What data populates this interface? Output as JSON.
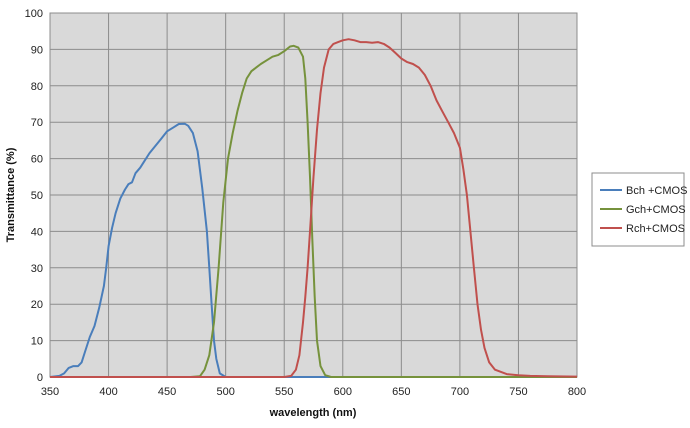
{
  "chart_data": {
    "type": "line",
    "title": "",
    "xlabel": "wavelength (nm)",
    "ylabel": "Transmittance (%)",
    "xlim": [
      350,
      800
    ],
    "ylim": [
      0,
      100
    ],
    "xticks": [
      350,
      400,
      450,
      500,
      550,
      600,
      650,
      700,
      750,
      800
    ],
    "yticks": [
      0,
      10,
      20,
      30,
      40,
      50,
      60,
      70,
      80,
      90,
      100
    ],
    "grid": true,
    "legend_position": "right",
    "colors": {
      "plot_background": "#d9d9d9",
      "grid": "#8c8c8c"
    },
    "series": [
      {
        "name": "Bch +CMOS",
        "color": "#4a7ebb",
        "points": [
          [
            350,
            0
          ],
          [
            358,
            0.3
          ],
          [
            362,
            1
          ],
          [
            366,
            2.5
          ],
          [
            370,
            3
          ],
          [
            374,
            3
          ],
          [
            377,
            4
          ],
          [
            380,
            7
          ],
          [
            384,
            11
          ],
          [
            388,
            14
          ],
          [
            392,
            19
          ],
          [
            396,
            25
          ],
          [
            398,
            30
          ],
          [
            400,
            36
          ],
          [
            403,
            41
          ],
          [
            406,
            45
          ],
          [
            410,
            49
          ],
          [
            414,
            51.5
          ],
          [
            417,
            53
          ],
          [
            420,
            53.5
          ],
          [
            423,
            56
          ],
          [
            427,
            57.5
          ],
          [
            430,
            59
          ],
          [
            435,
            61.5
          ],
          [
            440,
            63.5
          ],
          [
            445,
            65.5
          ],
          [
            450,
            67.5
          ],
          [
            455,
            68.5
          ],
          [
            460,
            69.5
          ],
          [
            465,
            69.6
          ],
          [
            468,
            69
          ],
          [
            472,
            67
          ],
          [
            476,
            62
          ],
          [
            480,
            52
          ],
          [
            484,
            40
          ],
          [
            486,
            30
          ],
          [
            488,
            20
          ],
          [
            490,
            10
          ],
          [
            492,
            5
          ],
          [
            495,
            1
          ],
          [
            500,
            0
          ],
          [
            550,
            0
          ],
          [
            600,
            0
          ],
          [
            650,
            0
          ],
          [
            700,
            0
          ],
          [
            800,
            0
          ]
        ]
      },
      {
        "name": "Gch+CMOS",
        "color": "#76923c",
        "points": [
          [
            350,
            0
          ],
          [
            470,
            0
          ],
          [
            478,
            0.2
          ],
          [
            482,
            2
          ],
          [
            486,
            6
          ],
          [
            490,
            15
          ],
          [
            494,
            30
          ],
          [
            498,
            48
          ],
          [
            502,
            60
          ],
          [
            506,
            67
          ],
          [
            510,
            73
          ],
          [
            514,
            78
          ],
          [
            518,
            82
          ],
          [
            522,
            84
          ],
          [
            526,
            85
          ],
          [
            530,
            86
          ],
          [
            535,
            87
          ],
          [
            540,
            88
          ],
          [
            545,
            88.5
          ],
          [
            550,
            89.5
          ],
          [
            555,
            90.8
          ],
          [
            558,
            91
          ],
          [
            562,
            90.5
          ],
          [
            566,
            88
          ],
          [
            568,
            82
          ],
          [
            570,
            70
          ],
          [
            572,
            55
          ],
          [
            574,
            38
          ],
          [
            576,
            22
          ],
          [
            578,
            10
          ],
          [
            581,
            3
          ],
          [
            585,
            0.5
          ],
          [
            590,
            0
          ],
          [
            650,
            0
          ],
          [
            700,
            0
          ],
          [
            800,
            0
          ]
        ]
      },
      {
        "name": "Rch+CMOS",
        "color": "#c0504d",
        "points": [
          [
            350,
            0
          ],
          [
            550,
            0
          ],
          [
            556,
            0.3
          ],
          [
            560,
            2
          ],
          [
            563,
            6
          ],
          [
            566,
            15
          ],
          [
            568,
            22
          ],
          [
            570,
            30
          ],
          [
            572,
            40
          ],
          [
            575,
            55
          ],
          [
            578,
            68
          ],
          [
            581,
            78
          ],
          [
            584,
            85
          ],
          [
            588,
            90
          ],
          [
            592,
            91.5
          ],
          [
            596,
            92
          ],
          [
            600,
            92.5
          ],
          [
            605,
            92.8
          ],
          [
            610,
            92.5
          ],
          [
            615,
            92
          ],
          [
            620,
            92
          ],
          [
            625,
            91.8
          ],
          [
            630,
            92
          ],
          [
            635,
            91.5
          ],
          [
            640,
            90.5
          ],
          [
            645,
            89
          ],
          [
            650,
            87.5
          ],
          [
            655,
            86.5
          ],
          [
            660,
            86
          ],
          [
            665,
            85
          ],
          [
            670,
            83
          ],
          [
            675,
            80
          ],
          [
            680,
            76
          ],
          [
            685,
            73
          ],
          [
            690,
            70
          ],
          [
            695,
            67
          ],
          [
            700,
            63
          ],
          [
            703,
            57
          ],
          [
            706,
            50
          ],
          [
            709,
            40
          ],
          [
            712,
            30
          ],
          [
            715,
            20
          ],
          [
            718,
            13
          ],
          [
            721,
            8
          ],
          [
            725,
            4
          ],
          [
            730,
            2
          ],
          [
            740,
            0.8
          ],
          [
            750,
            0.5
          ],
          [
            760,
            0.3
          ],
          [
            775,
            0.2
          ],
          [
            800,
            0.1
          ]
        ]
      }
    ]
  }
}
